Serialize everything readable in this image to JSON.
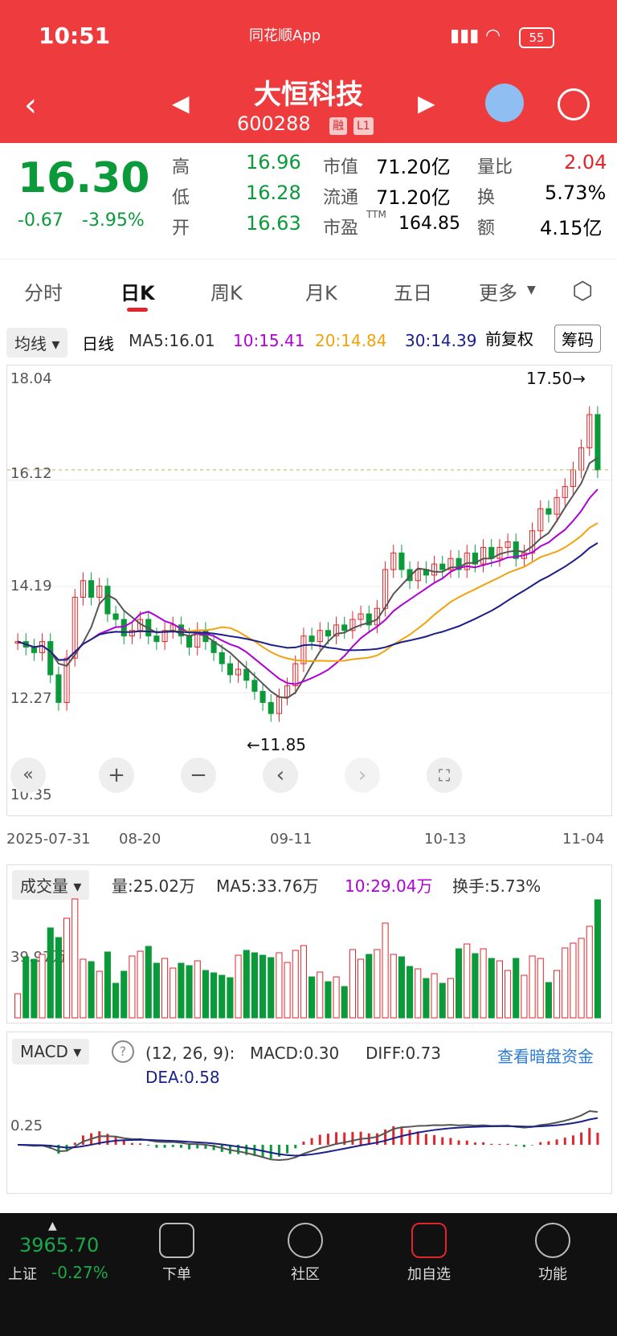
{
  "status": {
    "time": "10:51",
    "battery": "55"
  },
  "header": {
    "app_name": "同花顺App",
    "stock_name": "大恒科技",
    "stock_code": "600288",
    "tag1": "融",
    "tag2": "L1"
  },
  "quote": {
    "price": "16.30",
    "change": "-0.67",
    "change_pct": "-3.95%",
    "high_label": "高",
    "high": "16.96",
    "low_label": "低",
    "low": "16.28",
    "open_label": "开",
    "open": "16.63",
    "mcap_label": "市值",
    "mcap": "71.20亿",
    "float_label": "流通",
    "float": "71.20亿",
    "pe_label": "市盈",
    "pe_sup": "TTM",
    "pe": "164.85",
    "vr_label": "量比",
    "vr": "2.04",
    "turn_label": "换",
    "turn": "5.73%",
    "amt_label": "额",
    "amt": "4.15亿"
  },
  "tabs": [
    "分时",
    "日K",
    "周K",
    "月K",
    "五日",
    "更多"
  ],
  "ma_row": {
    "ma_btn": "均线",
    "period": "日线",
    "ma5": "MA5:16.01",
    "ma10": "10:15.41",
    "ma20": "20:14.84",
    "ma30": "30:14.39",
    "adjust": "前复权",
    "chip": "筹码"
  },
  "kline": {
    "y_labels": [
      "18.04",
      "16.12",
      "14.19",
      "12.27",
      "10.35"
    ],
    "high_mark": "17.50→",
    "low_mark": "←11.85",
    "x_labels": [
      "2025-07-31",
      "08-20",
      "09-11",
      "10-13",
      "11-04"
    ]
  },
  "volume": {
    "btn": "成交量",
    "vol": "量:25.02万",
    "ma5": "MA5:33.76万",
    "ma10": "10:29.04万",
    "turnover": "换手:5.73%",
    "y_label": "39.97万"
  },
  "macd": {
    "btn": "MACD",
    "params": "(12, 26, 9):",
    "macd": "MACD:0.30",
    "diff": "DIFF:0.73",
    "dea": "DEA:0.58",
    "link": "查看暗盘资金",
    "y_label": "0.25"
  },
  "bottom": {
    "index_value": "3965.70",
    "index_name": "上证",
    "index_change": "-0.27%",
    "nav": [
      "下单",
      "社区",
      "加自选",
      "功能"
    ]
  },
  "colors": {
    "header_red": "#ee3b3e",
    "up": "#e0262b",
    "down": "#0a9a3a",
    "ma10": "#b000d8",
    "ma20": "#f2a20a",
    "ma30": "#1a1f8a"
  },
  "chart_data": {
    "type": "candlestick",
    "x_labels": [
      "2025-07-31",
      "08-20",
      "09-11",
      "10-13",
      "11-04"
    ],
    "ylim": [
      10.35,
      18.04
    ],
    "close": [
      13.2,
      13.1,
      13.0,
      13.2,
      12.6,
      12.1,
      12.9,
      14.0,
      14.3,
      14.0,
      14.2,
      13.7,
      13.6,
      13.3,
      13.4,
      13.6,
      13.3,
      13.2,
      13.4,
      13.5,
      13.3,
      13.1,
      13.4,
      13.2,
      13.0,
      12.8,
      12.6,
      12.7,
      12.5,
      12.3,
      12.1,
      11.9,
      12.2,
      12.4,
      12.8,
      13.3,
      13.2,
      13.4,
      13.3,
      13.5,
      13.4,
      13.6,
      13.7,
      13.5,
      13.8,
      14.5,
      14.8,
      14.5,
      14.3,
      14.5,
      14.4,
      14.6,
      14.5,
      14.7,
      14.5,
      14.8,
      14.6,
      14.9,
      14.7,
      14.9,
      15.0,
      14.7,
      14.8,
      15.2,
      15.6,
      15.5,
      15.8,
      16.0,
      16.3,
      16.7,
      17.3,
      16.3
    ],
    "visible_values": {
      "last": 16.3,
      "high_label": 17.5,
      "low_label": 11.85
    }
  }
}
